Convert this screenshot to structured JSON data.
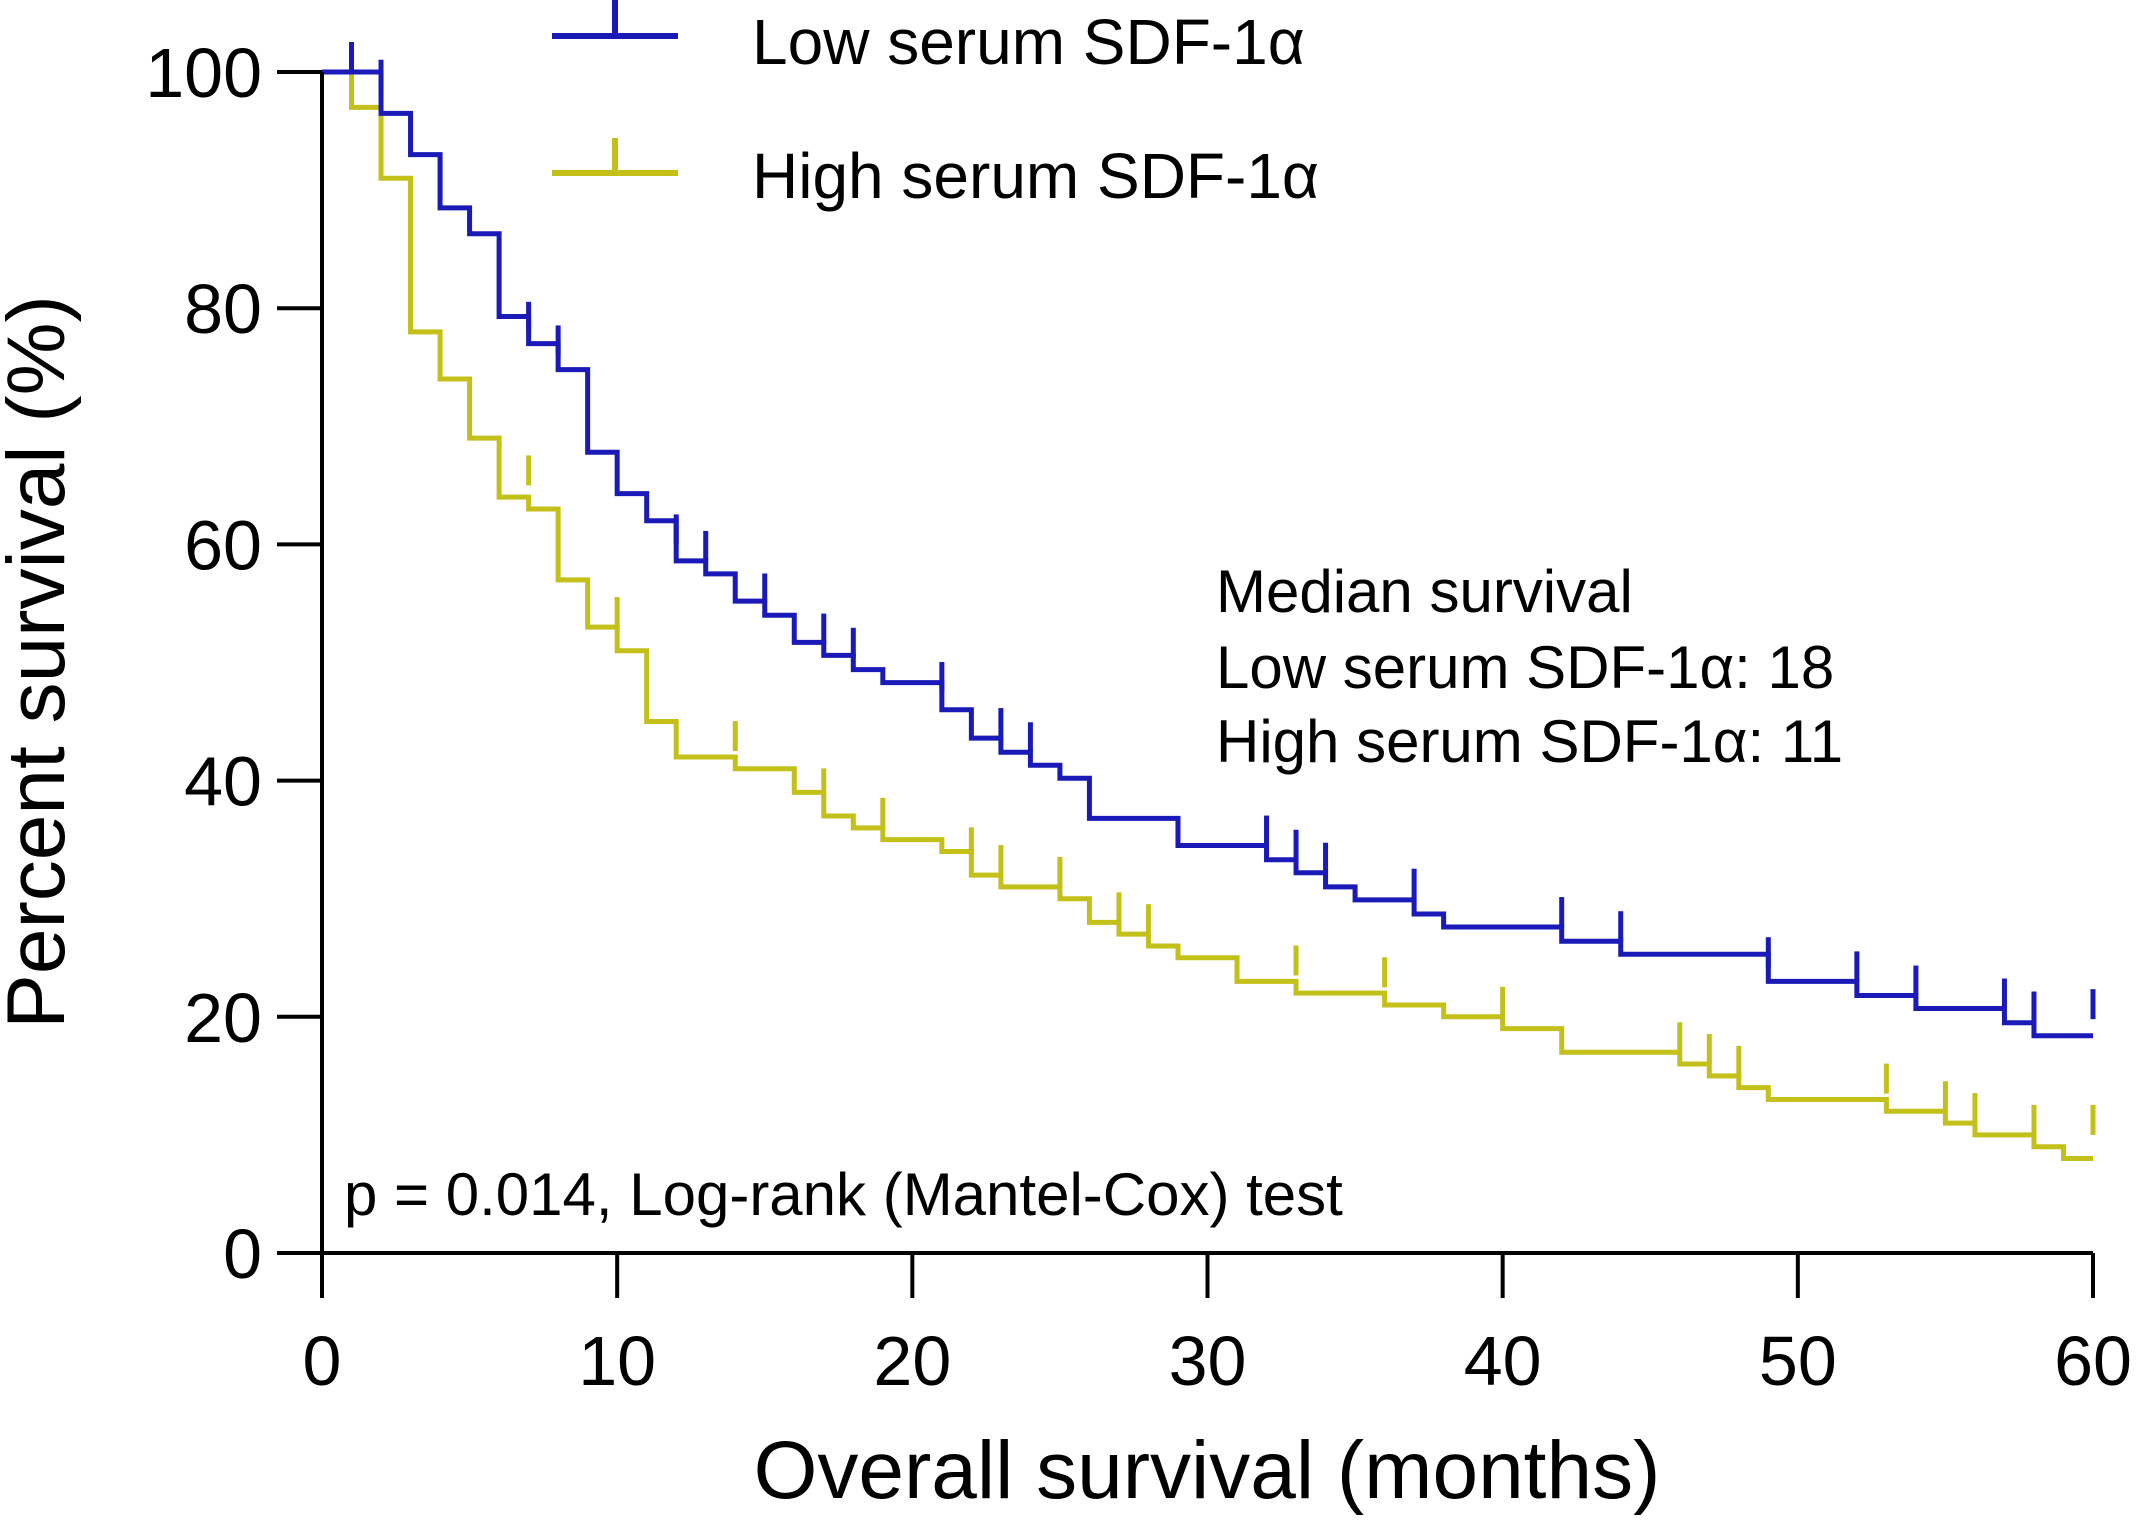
{
  "chart_data": {
    "type": "line",
    "subtype": "kaplan-meier",
    "title": "",
    "xlabel": "Overall survival (months)",
    "ylabel": "Percent survival (%)",
    "xlim": [
      0,
      60
    ],
    "ylim": [
      0,
      100
    ],
    "xticks": [
      0,
      10,
      20,
      30,
      40,
      50,
      60
    ],
    "yticks": [
      0,
      20,
      40,
      60,
      80,
      100
    ],
    "grid": false,
    "legend": "top",
    "series": [
      {
        "name": "Low serum SDF-1α",
        "color": "#1a1ab8",
        "steps": [
          [
            0,
            100
          ],
          [
            2,
            96.5
          ],
          [
            3,
            93
          ],
          [
            4,
            88.5
          ],
          [
            5,
            86.3
          ],
          [
            6,
            79.3
          ],
          [
            7,
            77
          ],
          [
            8,
            74.8
          ],
          [
            9,
            67.8
          ],
          [
            10,
            64.3
          ],
          [
            11,
            62
          ],
          [
            12,
            58.6
          ],
          [
            13,
            57.5
          ],
          [
            14,
            55.2
          ],
          [
            15,
            54
          ],
          [
            16,
            51.7
          ],
          [
            17,
            50.6
          ],
          [
            18,
            49.4
          ],
          [
            19,
            48.3
          ],
          [
            21,
            46
          ],
          [
            22,
            43.6
          ],
          [
            23,
            42.4
          ],
          [
            24,
            41.3
          ],
          [
            25,
            40.2
          ],
          [
            26,
            36.8
          ],
          [
            29,
            34.5
          ],
          [
            32,
            33.3
          ],
          [
            33,
            32.2
          ],
          [
            34,
            31
          ],
          [
            35,
            29.9
          ],
          [
            37,
            28.7
          ],
          [
            38,
            27.6
          ],
          [
            42,
            26.4
          ],
          [
            44,
            25.3
          ],
          [
            49,
            23
          ],
          [
            52,
            21.8
          ],
          [
            54,
            20.7
          ],
          [
            57,
            19.5
          ],
          [
            58,
            18.4
          ],
          [
            60,
            18.4
          ]
        ],
        "censored": [
          [
            1,
            100
          ],
          [
            2,
            98.5
          ],
          [
            7,
            78
          ],
          [
            8,
            76
          ],
          [
            12,
            60
          ],
          [
            13,
            58.6
          ],
          [
            15,
            55
          ],
          [
            17,
            51.6
          ],
          [
            18,
            50.4
          ],
          [
            21,
            47.5
          ],
          [
            23,
            43.6
          ],
          [
            24,
            42.4
          ],
          [
            32,
            34.5
          ],
          [
            33,
            33.3
          ],
          [
            34,
            32.2
          ],
          [
            37,
            30
          ],
          [
            42,
            27.6
          ],
          [
            44,
            26.4
          ],
          [
            49,
            24.2
          ],
          [
            52,
            23
          ],
          [
            54,
            21.8
          ],
          [
            57,
            20.7
          ],
          [
            58,
            19.6
          ],
          [
            60,
            19.8
          ]
        ]
      },
      {
        "name": "High serum SDF-1α",
        "color": "#c4c01a",
        "steps": [
          [
            0,
            100
          ],
          [
            1,
            97
          ],
          [
            2,
            91
          ],
          [
            3,
            78
          ],
          [
            4,
            74
          ],
          [
            5,
            69
          ],
          [
            6,
            64
          ],
          [
            7,
            63
          ],
          [
            8,
            57
          ],
          [
            9,
            53
          ],
          [
            10,
            51
          ],
          [
            11,
            45
          ],
          [
            12,
            42
          ],
          [
            14,
            41
          ],
          [
            16,
            39
          ],
          [
            17,
            37
          ],
          [
            18,
            36
          ],
          [
            19,
            35
          ],
          [
            21,
            34
          ],
          [
            22,
            32
          ],
          [
            23,
            31
          ],
          [
            25,
            30
          ],
          [
            26,
            28
          ],
          [
            27,
            27
          ],
          [
            28,
            26
          ],
          [
            29,
            25
          ],
          [
            31,
            23
          ],
          [
            33,
            22
          ],
          [
            36,
            21
          ],
          [
            38,
            20
          ],
          [
            40,
            19
          ],
          [
            42,
            17
          ],
          [
            46,
            16
          ],
          [
            47,
            15
          ],
          [
            48,
            14
          ],
          [
            49,
            13
          ],
          [
            53,
            12
          ],
          [
            55,
            11
          ],
          [
            56,
            10
          ],
          [
            58,
            9
          ],
          [
            59,
            8
          ],
          [
            60,
            8
          ]
        ],
        "censored": [
          [
            7,
            65
          ],
          [
            10,
            53
          ],
          [
            14,
            42.5
          ],
          [
            17,
            38.5
          ],
          [
            19,
            36
          ],
          [
            22,
            33.5
          ],
          [
            23,
            32
          ],
          [
            25,
            31
          ],
          [
            27,
            28
          ],
          [
            28,
            27
          ],
          [
            33,
            23.5
          ],
          [
            36,
            22.5
          ],
          [
            40,
            20
          ],
          [
            46,
            17
          ],
          [
            47,
            16
          ],
          [
            48,
            15
          ],
          [
            53,
            13.5
          ],
          [
            55,
            12
          ],
          [
            56,
            11
          ],
          [
            58,
            10
          ],
          [
            60,
            10
          ]
        ]
      }
    ],
    "annotations": {
      "median_title": "Median survival",
      "median_low": "Low serum SDF-1α: 18",
      "median_high": "High serum SDF-1α: 11",
      "p_value": "p = 0.014, Log-rank (Mantel-Cox) test"
    }
  }
}
